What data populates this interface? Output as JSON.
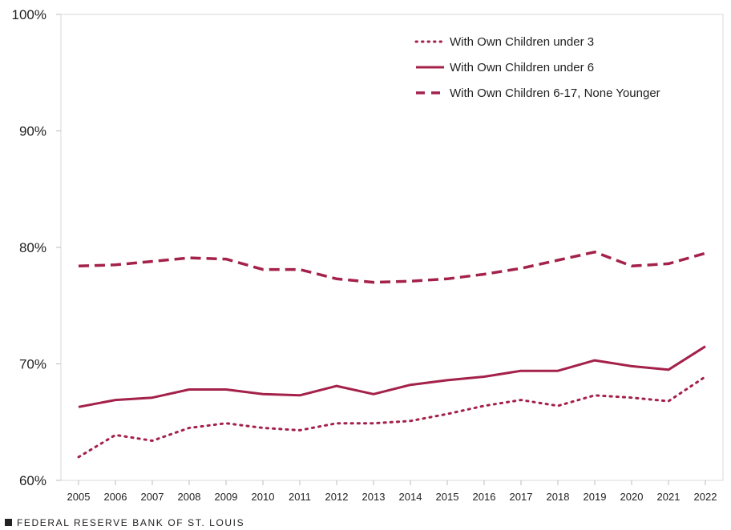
{
  "chart_data": {
    "type": "line",
    "title": "",
    "xlabel": "",
    "ylabel": "",
    "x": [
      2005,
      2006,
      2007,
      2008,
      2009,
      2010,
      2011,
      2012,
      2013,
      2014,
      2015,
      2016,
      2017,
      2018,
      2019,
      2020,
      2021,
      2022
    ],
    "x_tick_labels": [
      "2005",
      "2006",
      "2007",
      "2008",
      "2009",
      "2010",
      "2011",
      "2012",
      "2013",
      "2014",
      "2015",
      "2016",
      "2017",
      "2018",
      "2019",
      "2020",
      "2021",
      "2022"
    ],
    "ylim": [
      60,
      100
    ],
    "y_ticks": [
      60,
      70,
      80,
      90,
      100
    ],
    "y_tick_labels": [
      "60%",
      "70%",
      "80%",
      "90%",
      "100%"
    ],
    "grid": false,
    "legend_position": "top-right",
    "series": [
      {
        "name": "With Own Children under 3",
        "style": "dotted",
        "color": "#a4214a",
        "values": [
          62.0,
          63.9,
          63.4,
          64.5,
          64.9,
          64.5,
          64.3,
          64.9,
          64.9,
          65.1,
          65.7,
          66.4,
          66.9,
          66.4,
          67.3,
          67.1,
          66.8,
          68.9
        ]
      },
      {
        "name": "With Own Children under 6",
        "style": "solid",
        "color": "#a4214a",
        "values": [
          66.3,
          66.9,
          67.1,
          67.8,
          67.8,
          67.4,
          67.3,
          68.1,
          67.4,
          68.2,
          68.6,
          68.9,
          69.4,
          69.4,
          70.3,
          69.8,
          69.5,
          71.5
        ]
      },
      {
        "name": "With Own Children 6-17, None Younger",
        "style": "dashed",
        "color": "#a4214a",
        "values": [
          78.4,
          78.5,
          78.8,
          79.1,
          79.0,
          78.1,
          78.1,
          77.3,
          77.0,
          77.1,
          77.3,
          77.7,
          78.2,
          78.9,
          79.6,
          78.4,
          78.6,
          79.5
        ]
      }
    ]
  },
  "footer": {
    "source": "FEDERAL RESERVE BANK OF ST. LOUIS"
  }
}
